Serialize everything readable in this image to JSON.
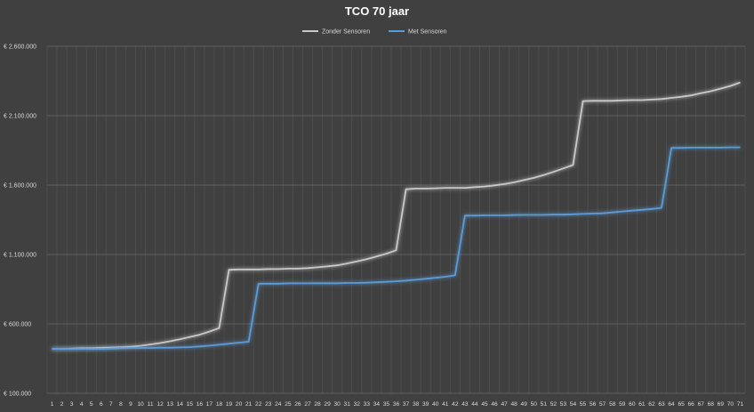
{
  "chart_data": {
    "type": "line",
    "title": "TCO 70 jaar",
    "xlabel": "",
    "ylabel": "",
    "x": [
      1,
      2,
      3,
      4,
      5,
      6,
      7,
      8,
      9,
      10,
      11,
      12,
      13,
      14,
      15,
      16,
      17,
      18,
      19,
      20,
      21,
      22,
      23,
      24,
      25,
      26,
      27,
      28,
      29,
      30,
      31,
      32,
      33,
      34,
      35,
      36,
      37,
      38,
      39,
      40,
      41,
      42,
      43,
      44,
      45,
      46,
      47,
      48,
      49,
      50,
      51,
      52,
      53,
      54,
      55,
      56,
      57,
      58,
      59,
      60,
      61,
      62,
      63,
      64,
      65,
      66,
      67,
      68,
      69,
      70,
      71
    ],
    "ylim": [
      100000,
      2600000
    ],
    "yticks": [
      100000,
      600000,
      1100000,
      1600000,
      2100000,
      2600000
    ],
    "ytick_labels": [
      "€ 100.000",
      "€ 600.000",
      "€ 1.100.000",
      "€ 1.600.000",
      "€ 2.100.000",
      "€ 2.600.000"
    ],
    "grid": true,
    "legend_position": "top",
    "series": [
      {
        "name": "Zonder Sensoren",
        "color": "#c8c8c8",
        "values": [
          420000,
          420000,
          422000,
          425000,
          425000,
          428000,
          430000,
          432000,
          435000,
          442000,
          452000,
          462000,
          475000,
          490000,
          505000,
          522000,
          545000,
          570000,
          990000,
          992000,
          992000,
          992000,
          995000,
          995000,
          998000,
          998000,
          1002000,
          1008000,
          1015000,
          1022000,
          1035000,
          1050000,
          1066000,
          1085000,
          1106000,
          1130000,
          1570000,
          1575000,
          1575000,
          1577000,
          1580000,
          1580000,
          1580000,
          1585000,
          1590000,
          1598000,
          1607000,
          1620000,
          1636000,
          1652000,
          1672000,
          1695000,
          1720000,
          1745000,
          2205000,
          2207000,
          2207000,
          2207000,
          2210000,
          2212000,
          2212000,
          2216000,
          2220000,
          2228000,
          2236000,
          2246000,
          2262000,
          2276000,
          2295000,
          2314000,
          2340000
        ]
      },
      {
        "name": "Met Sensoren",
        "color": "#5b9bd5",
        "values": [
          420000,
          420000,
          420000,
          420000,
          420000,
          420000,
          422000,
          425000,
          427000,
          427000,
          427000,
          429000,
          429000,
          431000,
          433000,
          438000,
          443000,
          450000,
          458000,
          465000,
          472000,
          890000,
          890000,
          890000,
          892000,
          892000,
          892000,
          893000,
          893000,
          893000,
          895000,
          895000,
          897000,
          900000,
          903000,
          907000,
          912000,
          918000,
          925000,
          932000,
          940000,
          950000,
          1380000,
          1380000,
          1382000,
          1382000,
          1382000,
          1384000,
          1385000,
          1385000,
          1385000,
          1387000,
          1387000,
          1390000,
          1392000,
          1395000,
          1397000,
          1403000,
          1410000,
          1416000,
          1422000,
          1428000,
          1436000,
          1868000,
          1868000,
          1870000,
          1870000,
          1870000,
          1870000,
          1872000,
          1872000
        ]
      }
    ]
  }
}
